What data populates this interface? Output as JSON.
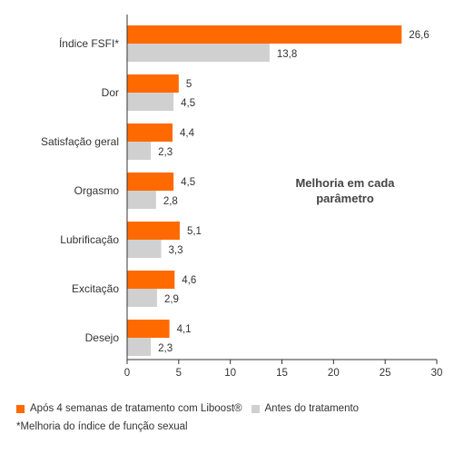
{
  "colors": {
    "after": "#ff6a00",
    "before": "#d0d0d0",
    "axis": "#333333"
  },
  "chart_data": {
    "type": "bar",
    "orientation": "horizontal",
    "categories": [
      "Índice FSFI*",
      "Dor",
      "Satisfação geral",
      "Orgasmo",
      "Lubrificação",
      "Excitação",
      "Desejo"
    ],
    "series": [
      {
        "name": "Após 4 semanas de tratamento com Liboost®",
        "values": [
          26.6,
          5,
          4.4,
          4.5,
          5.1,
          4.6,
          4.1
        ],
        "labels": [
          "26,6",
          "5",
          "4,4",
          "4,5",
          "5,1",
          "4,6",
          "4,1"
        ]
      },
      {
        "name": "Antes do tratamento",
        "values": [
          13.8,
          4.5,
          2.3,
          2.8,
          3.3,
          2.9,
          2.3
        ],
        "labels": [
          "13,8",
          "4,5",
          "2,3",
          "2,8",
          "3,3",
          "2,9",
          "2,3"
        ]
      }
    ],
    "xlim": [
      0,
      30
    ],
    "xticks": [
      0,
      5,
      10,
      15,
      20,
      25,
      30
    ],
    "annotation": [
      "Melhoria em cada",
      "parâmetro"
    ],
    "legend_position": "bottom-left",
    "grid": false
  },
  "legend": {
    "after_label": "Após 4 semanas de tratamento com Liboost®",
    "before_label": "Antes do tratamento"
  },
  "footnote": "*Melhoria do índice de função sexual"
}
